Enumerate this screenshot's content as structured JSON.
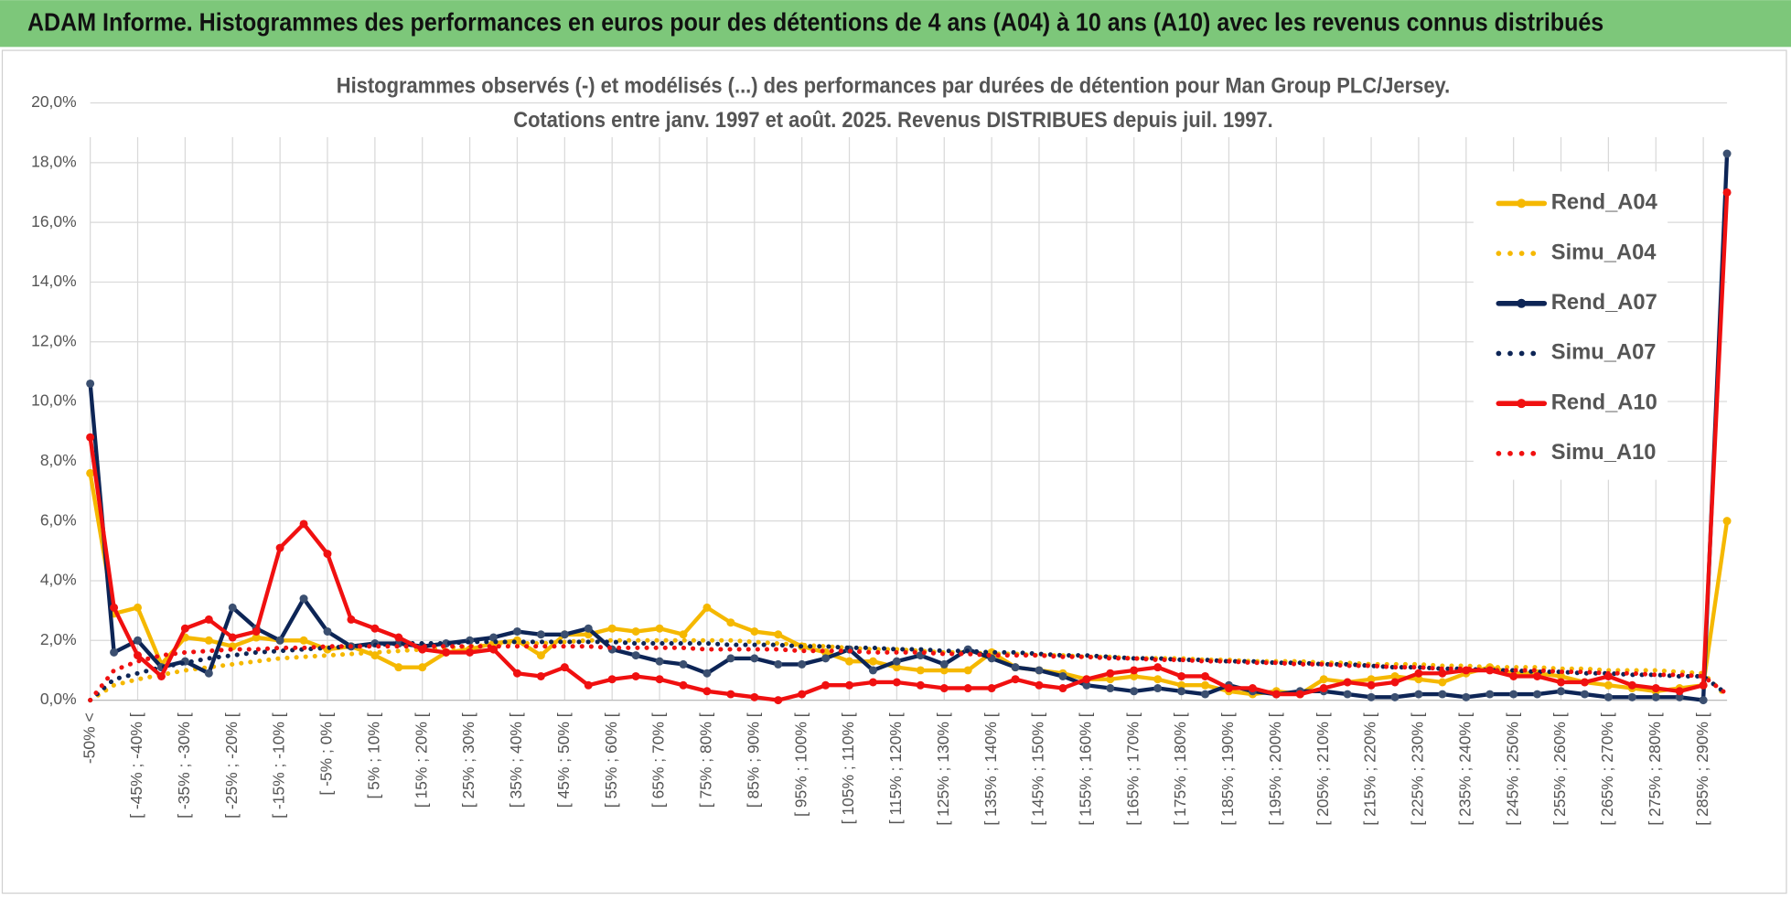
{
  "header": {
    "title": "ADAM Informe. Histogrammes des performances en euros pour des détentions de 4 ans (A04) à 10 ans (A10) avec les revenus connus distribués"
  },
  "chart_data": {
    "type": "line",
    "title": "Histogrammes observés (-) et modélisés (...) des performances par durées de détention pour Man Group PLC/Jersey.",
    "subtitle": "Cotations entre janv. 1997 et août. 2025. Revenus DISTRIBUES depuis juil. 1997.",
    "categories": [
      "-50% <",
      null,
      "[ -45% ; -40% [",
      null,
      "[ -35% ; -30% [",
      null,
      "[ -25% ; -20% [",
      null,
      "[ -15% ; -10% [",
      null,
      "[ -5% ; 0% [",
      null,
      "[ 5% ; 10% [",
      null,
      "[ 15% ; 20% [",
      null,
      "[ 25% ; 30% [",
      null,
      "[ 35% ; 40% [",
      null,
      "[ 45% ; 50% [",
      null,
      "[ 55% ; 60% [",
      null,
      "[ 65% ; 70% [",
      null,
      "[ 75% ; 80% [",
      null,
      "[ 85% ; 90% [",
      null,
      "[ 95% ; 100% [",
      null,
      "[ 105% ; 110% [",
      null,
      "[ 115% ; 120% [",
      null,
      "[ 125% ; 130% [",
      null,
      "[ 135% ; 140% [",
      null,
      "[ 145% ; 150% [",
      null,
      "[ 155% ; 160% [",
      null,
      "[ 165% ; 170% [",
      null,
      "[ 175% ; 180% [",
      null,
      "[ 185% ; 190% [",
      null,
      "[ 195% ; 200% [",
      null,
      "[ 205% ; 210% [",
      null,
      "[ 215% ; 220% [",
      null,
      "[ 225% ; 230% [",
      null,
      "[ 235% ; 240% [",
      null,
      "[ 245% ; 250% [",
      null,
      "[ 255% ; 260% [",
      null,
      "[ 265% ; 270% [",
      null,
      "[ 275% ; 280% [",
      null,
      "[ 285% ; 290% [",
      null
    ],
    "series": [
      {
        "name": "Rend_A04",
        "color": "#f5b800",
        "style": "solid",
        "values": [
          7.6,
          2.9,
          3.1,
          1.2,
          2.1,
          2.0,
          1.8,
          2.1,
          2.0,
          2.0,
          1.7,
          1.8,
          1.5,
          1.1,
          1.1,
          1.6,
          1.7,
          1.9,
          2.0,
          1.5,
          2.2,
          2.2,
          2.4,
          2.3,
          2.4,
          2.2,
          3.1,
          2.6,
          2.3,
          2.2,
          1.8,
          1.6,
          1.3,
          1.3,
          1.1,
          1.0,
          1.0,
          1.0,
          1.6,
          1.1,
          1.0,
          0.9,
          0.7,
          0.7,
          0.8,
          0.7,
          0.5,
          0.5,
          0.3,
          0.2,
          0.3,
          0.2,
          0.7,
          0.6,
          0.7,
          0.8,
          0.7,
          0.6,
          0.9,
          1.1,
          0.9,
          0.9,
          0.8,
          0.6,
          0.5,
          0.4,
          0.3,
          0.4,
          0.5,
          6.0
        ]
      },
      {
        "name": "Simu_A04",
        "color": "#f5b800",
        "style": "dotted",
        "values": [
          0,
          0.5,
          0.7,
          0.85,
          1.0,
          1.1,
          1.2,
          1.3,
          1.4,
          1.45,
          1.5,
          1.55,
          1.6,
          1.65,
          1.7,
          1.75,
          1.8,
          1.85,
          1.9,
          1.9,
          1.95,
          2.0,
          2.0,
          2.0,
          2.0,
          2.0,
          2.0,
          2.0,
          1.95,
          1.9,
          1.85,
          1.8,
          1.75,
          1.7,
          1.7,
          1.65,
          1.6,
          1.6,
          1.55,
          1.55,
          1.5,
          1.5,
          1.45,
          1.45,
          1.4,
          1.4,
          1.4,
          1.35,
          1.35,
          1.3,
          1.3,
          1.3,
          1.25,
          1.25,
          1.2,
          1.2,
          1.2,
          1.15,
          1.15,
          1.1,
          1.1,
          1.1,
          1.05,
          1.05,
          1.0,
          1.0,
          1.0,
          0.95,
          0.9,
          0.1
        ]
      },
      {
        "name": "Rend_A07",
        "color": "#0d2556",
        "style": "solid",
        "values": [
          10.6,
          1.6,
          2.0,
          1.1,
          1.3,
          0.9,
          3.1,
          2.4,
          2.0,
          3.4,
          2.3,
          1.8,
          1.9,
          1.9,
          1.8,
          1.9,
          2.0,
          2.1,
          2.3,
          2.2,
          2.2,
          2.4,
          1.7,
          1.5,
          1.3,
          1.2,
          0.9,
          1.4,
          1.4,
          1.2,
          1.2,
          1.4,
          1.7,
          1.0,
          1.3,
          1.5,
          1.2,
          1.7,
          1.4,
          1.1,
          1.0,
          0.8,
          0.5,
          0.4,
          0.3,
          0.4,
          0.3,
          0.2,
          0.5,
          0.3,
          0.2,
          0.3,
          0.3,
          0.2,
          0.1,
          0.1,
          0.2,
          0.2,
          0.1,
          0.2,
          0.2,
          0.2,
          0.3,
          0.2,
          0.1,
          0.1,
          0.1,
          0.1,
          0.0,
          18.3
        ]
      },
      {
        "name": "Simu_A07",
        "color": "#0d2556",
        "style": "dotted",
        "values": [
          0,
          0.7,
          0.9,
          1.1,
          1.25,
          1.4,
          1.5,
          1.6,
          1.65,
          1.7,
          1.75,
          1.8,
          1.85,
          1.9,
          1.9,
          1.9,
          1.95,
          1.95,
          1.95,
          1.95,
          1.95,
          1.95,
          1.95,
          1.9,
          1.9,
          1.9,
          1.9,
          1.85,
          1.85,
          1.85,
          1.8,
          1.8,
          1.75,
          1.75,
          1.7,
          1.7,
          1.65,
          1.65,
          1.6,
          1.6,
          1.55,
          1.5,
          1.5,
          1.45,
          1.4,
          1.4,
          1.35,
          1.35,
          1.3,
          1.3,
          1.25,
          1.25,
          1.2,
          1.2,
          1.15,
          1.1,
          1.1,
          1.05,
          1.05,
          1.0,
          1.0,
          0.95,
          0.95,
          0.9,
          0.9,
          0.85,
          0.85,
          0.8,
          0.8,
          0.2
        ]
      },
      {
        "name": "Rend_A10",
        "color": "#f01010",
        "style": "solid",
        "values": [
          8.8,
          3.1,
          1.5,
          0.8,
          2.4,
          2.7,
          2.1,
          2.3,
          5.1,
          5.9,
          4.9,
          2.7,
          2.4,
          2.1,
          1.7,
          1.6,
          1.6,
          1.7,
          0.9,
          0.8,
          1.1,
          0.5,
          0.7,
          0.8,
          0.7,
          0.5,
          0.3,
          0.2,
          0.1,
          0.0,
          0.2,
          0.5,
          0.5,
          0.6,
          0.6,
          0.5,
          0.4,
          0.4,
          0.4,
          0.7,
          0.5,
          0.4,
          0.7,
          0.9,
          1.0,
          1.1,
          0.8,
          0.8,
          0.4,
          0.4,
          0.2,
          0.2,
          0.4,
          0.6,
          0.5,
          0.6,
          0.9,
          0.9,
          1.0,
          1.0,
          0.8,
          0.8,
          0.6,
          0.6,
          0.8,
          0.5,
          0.4,
          0.3,
          0.5,
          17.0
        ]
      },
      {
        "name": "Simu_A10",
        "color": "#f01010",
        "style": "dotted",
        "values": [
          0,
          1.0,
          1.3,
          1.5,
          1.6,
          1.65,
          1.7,
          1.7,
          1.75,
          1.75,
          1.8,
          1.8,
          1.8,
          1.8,
          1.8,
          1.8,
          1.8,
          1.8,
          1.8,
          1.8,
          1.8,
          1.8,
          1.75,
          1.75,
          1.75,
          1.75,
          1.7,
          1.7,
          1.7,
          1.7,
          1.65,
          1.65,
          1.65,
          1.6,
          1.6,
          1.6,
          1.55,
          1.55,
          1.5,
          1.5,
          1.5,
          1.45,
          1.45,
          1.4,
          1.4,
          1.35,
          1.35,
          1.3,
          1.3,
          1.25,
          1.25,
          1.2,
          1.2,
          1.15,
          1.15,
          1.1,
          1.1,
          1.05,
          1.05,
          1.0,
          1.0,
          1.0,
          0.95,
          0.95,
          0.9,
          0.9,
          0.85,
          0.85,
          0.8,
          0.2
        ]
      }
    ],
    "ylim": [
      0,
      20
    ],
    "yticks": [
      {
        "value": 0,
        "label": "0,0%"
      },
      {
        "value": 2,
        "label": "2,0%"
      },
      {
        "value": 4,
        "label": "4,0%"
      },
      {
        "value": 6,
        "label": "6,0%"
      },
      {
        "value": 8,
        "label": "8,0%"
      },
      {
        "value": 10,
        "label": "10,0%"
      },
      {
        "value": 12,
        "label": "12,0%"
      },
      {
        "value": 14,
        "label": "14,0%"
      },
      {
        "value": 16,
        "label": "16,0%"
      },
      {
        "value": 18,
        "label": "18,0%"
      },
      {
        "value": 20,
        "label": "20,0%"
      }
    ],
    "grid": true,
    "legend": "right"
  }
}
